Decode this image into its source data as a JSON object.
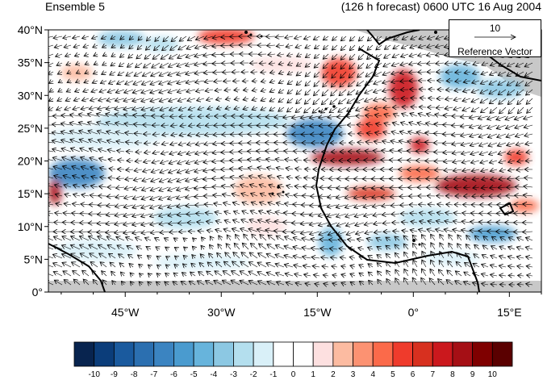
{
  "header": {
    "left_title": "Ensemble 5",
    "right_title": "(126 h forecast) 0600 UTC 16 Aug 2004"
  },
  "map": {
    "lat_labels": [
      "0°",
      "5°N",
      "10°N",
      "15°N",
      "20°N",
      "25°N",
      "30°N",
      "35°N",
      "40°N"
    ],
    "lon_labels": [
      "45°W",
      "30°W",
      "15°W",
      "0°",
      "15°E"
    ],
    "lat_range": [
      0,
      40
    ],
    "lon_range": [
      -57,
      20
    ],
    "colors": {
      "ocean_bg": "#ffffff",
      "land_mask": "#c8c8c8",
      "coast": "#000000",
      "vector": "#000000"
    }
  },
  "reference_vector": {
    "value": "10",
    "label": "Reference Vector"
  },
  "colorbar": {
    "labels": [
      "-10",
      "-9",
      "-8",
      "-7",
      "-6",
      "-5",
      "-4",
      "-3",
      "-2",
      "-1",
      "0",
      "1",
      "2",
      "3",
      "4",
      "5",
      "6",
      "7",
      "8",
      "9",
      "10"
    ],
    "colors": [
      "#08244f",
      "#0b3d7a",
      "#1a5a9e",
      "#2b6fb0",
      "#3b84c1",
      "#4a9bcf",
      "#67b4dc",
      "#8cc8e3",
      "#b4dfee",
      "#d9f0f8",
      "#ffffff",
      "#ffffff",
      "#fde0e0",
      "#fcbba1",
      "#fc9272",
      "#fb6a4a",
      "#ef3b2c",
      "#d7301f",
      "#cb181d",
      "#a50f15",
      "#7f0000",
      "#5a0000"
    ]
  }
}
